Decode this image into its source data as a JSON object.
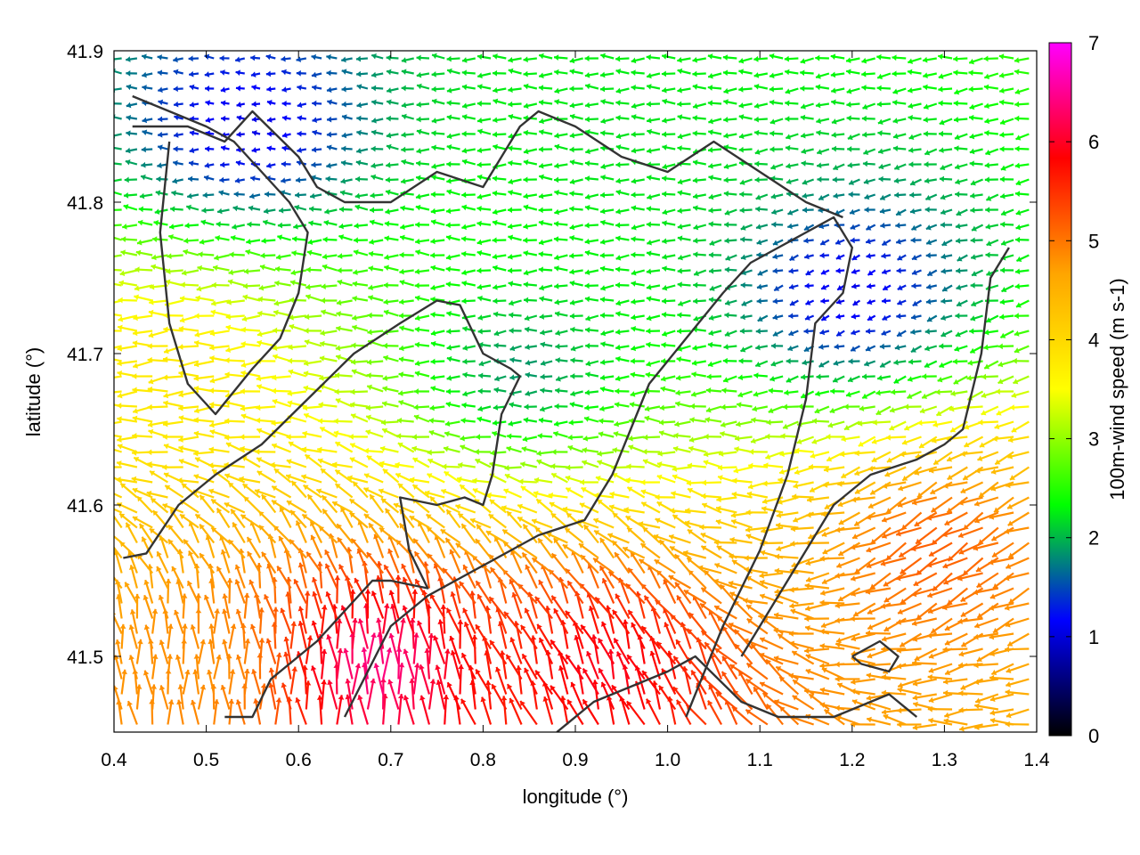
{
  "chart_data": {
    "type": "vector-field",
    "title": "",
    "xlabel": "longitude (°)",
    "ylabel": "latitude (°)",
    "xlim": [
      0.4,
      1.4
    ],
    "ylim": [
      41.45,
      41.9
    ],
    "x_ticks": [
      0.4,
      0.5,
      0.6,
      0.7,
      0.8,
      0.9,
      1.0,
      1.1,
      1.2,
      1.3,
      1.4
    ],
    "x_tick_labels": [
      "0.4",
      "0.5",
      "0.6",
      "0.7",
      "0.8",
      "0.9",
      "1.0",
      "1.1",
      "1.2",
      "1.3",
      "1.4"
    ],
    "y_ticks": [
      41.5,
      41.6,
      41.7,
      41.8,
      41.9
    ],
    "y_tick_labels": [
      "41.5",
      "41.6",
      "41.7",
      "41.8",
      "41.9"
    ],
    "colorbar": {
      "label": "100m-wind speed (m s-1)",
      "range": [
        0,
        7
      ],
      "ticks": [
        0,
        1,
        2,
        3,
        4,
        5,
        6,
        7
      ],
      "tick_labels": [
        "0",
        "1",
        "2",
        "3",
        "4",
        "5",
        "6",
        "7"
      ],
      "colormap": [
        "#000000",
        "#0000ff",
        "#00ff00",
        "#ffff00",
        "#ffa500",
        "#ff0000",
        "#ff00ff"
      ]
    },
    "vector_regions": [
      {
        "region": "north-west",
        "lon": [
          0.4,
          0.7
        ],
        "lat": [
          41.8,
          41.9
        ],
        "speed": 1.0,
        "direction_deg": 180
      },
      {
        "region": "central-north",
        "lon": [
          0.7,
          1.2
        ],
        "lat": [
          41.78,
          41.9
        ],
        "speed": 2.2,
        "direction_deg": 180
      },
      {
        "region": "west",
        "lon": [
          0.4,
          0.55
        ],
        "lat": [
          41.6,
          41.78
        ],
        "speed": 3.8,
        "direction_deg": 185
      },
      {
        "region": "center",
        "lon": [
          0.6,
          1.1
        ],
        "lat": [
          41.6,
          41.78
        ],
        "speed": 1.8,
        "direction_deg": 185
      },
      {
        "region": "east",
        "lon": [
          1.1,
          1.3
        ],
        "lat": [
          41.68,
          41.8
        ],
        "speed": 1.0,
        "direction_deg": 200
      },
      {
        "region": "south-east",
        "lon": [
          1.2,
          1.4
        ],
        "lat": [
          41.45,
          41.7
        ],
        "speed": 5.2,
        "direction_deg": 210
      },
      {
        "region": "south-west",
        "lon": [
          0.4,
          0.6
        ],
        "lat": [
          41.45,
          41.52
        ],
        "speed": 4.8,
        "direction_deg": 90
      },
      {
        "region": "south-center",
        "lon": [
          0.65,
          0.72
        ],
        "lat": [
          41.45,
          41.52
        ],
        "speed": 6.5,
        "direction_deg": 90
      },
      {
        "region": "south-center-east",
        "lon": [
          0.88,
          1.0
        ],
        "lat": [
          41.45,
          41.52
        ],
        "speed": 6.0,
        "direction_deg": 110
      }
    ],
    "contour_lines": [
      [
        [
          0.41,
          41.565
        ],
        [
          0.435,
          41.568
        ],
        [
          0.47,
          41.6
        ],
        [
          0.51,
          41.62
        ],
        [
          0.56,
          41.64
        ],
        [
          0.61,
          41.67
        ],
        [
          0.66,
          41.7
        ],
        [
          0.71,
          41.72
        ],
        [
          0.75,
          41.735
        ],
        [
          0.775,
          41.732
        ],
        [
          0.8,
          41.7
        ],
        [
          0.83,
          41.69
        ],
        [
          0.84,
          41.685
        ],
        [
          0.82,
          41.66
        ],
        [
          0.81,
          41.62
        ],
        [
          0.8,
          41.6
        ],
        [
          0.78,
          41.605
        ],
        [
          0.75,
          41.6
        ],
        [
          0.71,
          41.605
        ],
        [
          0.72,
          41.57
        ],
        [
          0.74,
          41.545
        ],
        [
          0.7,
          41.55
        ],
        [
          0.68,
          41.55
        ],
        [
          0.65,
          41.53
        ],
        [
          0.62,
          41.51
        ],
        [
          0.6,
          41.5
        ],
        [
          0.57,
          41.485
        ],
        [
          0.55,
          41.46
        ],
        [
          0.52,
          41.46
        ]
      ],
      [
        [
          0.65,
          41.46
        ],
        [
          0.7,
          41.52
        ],
        [
          0.74,
          41.54
        ],
        [
          0.8,
          41.56
        ],
        [
          0.86,
          41.58
        ],
        [
          0.91,
          41.59
        ],
        [
          0.94,
          41.62
        ],
        [
          0.96,
          41.65
        ],
        [
          0.98,
          41.68
        ],
        [
          1.02,
          41.71
        ],
        [
          1.06,
          41.74
        ],
        [
          1.09,
          41.76
        ],
        [
          1.12,
          41.77
        ],
        [
          1.15,
          41.78
        ],
        [
          1.18,
          41.79
        ],
        [
          1.2,
          41.77
        ],
        [
          1.19,
          41.74
        ],
        [
          1.16,
          41.72
        ],
        [
          1.15,
          41.67
        ],
        [
          1.13,
          41.62
        ],
        [
          1.1,
          41.57
        ],
        [
          1.06,
          41.52
        ],
        [
          1.02,
          41.46
        ]
      ],
      [
        [
          0.42,
          41.85
        ],
        [
          0.48,
          41.85
        ],
        [
          0.52,
          41.84
        ],
        [
          0.55,
          41.86
        ],
        [
          0.6,
          41.83
        ],
        [
          0.62,
          41.81
        ],
        [
          0.65,
          41.8
        ],
        [
          0.7,
          41.8
        ],
        [
          0.75,
          41.82
        ],
        [
          0.8,
          41.81
        ],
        [
          0.84,
          41.85
        ],
        [
          0.86,
          41.86
        ],
        [
          0.9,
          41.85
        ],
        [
          0.95,
          41.83
        ],
        [
          1.0,
          41.82
        ],
        [
          1.05,
          41.84
        ],
        [
          1.1,
          41.82
        ],
        [
          1.15,
          41.8
        ],
        [
          1.19,
          41.79
        ]
      ],
      [
        [
          1.08,
          41.5
        ],
        [
          1.13,
          41.55
        ],
        [
          1.18,
          41.6
        ],
        [
          1.22,
          41.62
        ],
        [
          1.27,
          41.63
        ],
        [
          1.3,
          41.64
        ],
        [
          1.32,
          41.65
        ],
        [
          1.34,
          41.7
        ],
        [
          1.35,
          41.75
        ],
        [
          1.37,
          41.77
        ]
      ],
      [
        [
          0.88,
          41.45
        ],
        [
          0.92,
          41.47
        ],
        [
          0.96,
          41.48
        ],
        [
          1.0,
          41.49
        ],
        [
          1.03,
          41.5
        ],
        [
          1.08,
          41.47
        ],
        [
          1.12,
          41.46
        ],
        [
          1.18,
          41.46
        ],
        [
          1.24,
          41.475
        ],
        [
          1.27,
          41.46
        ]
      ],
      [
        [
          0.42,
          41.87
        ],
        [
          0.46,
          41.86
        ],
        [
          0.5,
          41.85
        ],
        [
          0.53,
          41.84
        ],
        [
          0.56,
          41.82
        ],
        [
          0.59,
          41.8
        ],
        [
          0.61,
          41.78
        ],
        [
          0.6,
          41.74
        ],
        [
          0.58,
          41.71
        ],
        [
          0.55,
          41.69
        ],
        [
          0.51,
          41.66
        ],
        [
          0.48,
          41.68
        ],
        [
          0.46,
          41.72
        ],
        [
          0.45,
          41.78
        ],
        [
          0.46,
          41.84
        ]
      ],
      [
        [
          1.2,
          41.5
        ],
        [
          1.23,
          41.51
        ],
        [
          1.25,
          41.5
        ],
        [
          1.24,
          41.49
        ],
        [
          1.21,
          41.495
        ],
        [
          1.2,
          41.5
        ]
      ]
    ]
  }
}
